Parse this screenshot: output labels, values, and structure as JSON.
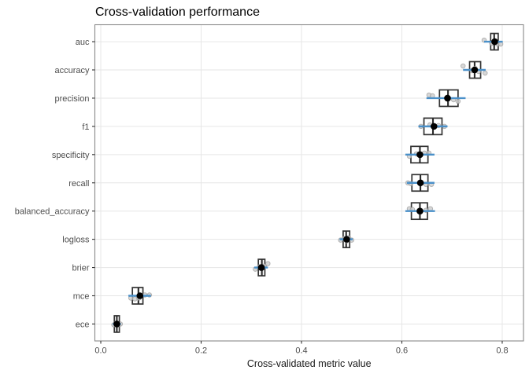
{
  "title": "Cross-validation performance",
  "chart_data": {
    "type": "boxplot",
    "orientation": "horizontal",
    "title": "Cross-validation performance",
    "xlabel": "Cross-validated metric value",
    "ylabel": "",
    "xlim": [
      -0.0118,
      0.8424
    ],
    "x_ticks": [
      0.0,
      0.2,
      0.4,
      0.6,
      0.8
    ],
    "x_tick_labels": [
      "0.0",
      "0.2",
      "0.4",
      "0.6",
      "0.8"
    ],
    "grid": true,
    "legend": "none",
    "categories": [
      "auc",
      "accuracy",
      "precision",
      "f1",
      "specificity",
      "recall",
      "balanced_accuracy",
      "logloss",
      "brier",
      "mce",
      "ece"
    ],
    "metrics": [
      {
        "name": "auc",
        "q1": 0.777,
        "median": 0.784,
        "q3": 0.792,
        "mean": 0.785,
        "range_lo": 0.764,
        "range_hi": 0.801,
        "points": [
          {
            "v": 0.764,
            "dy": -2
          },
          {
            "v": 0.779,
            "dy": 2
          },
          {
            "v": 0.786,
            "dy": -1
          },
          {
            "v": 0.791,
            "dy": 3
          },
          {
            "v": 0.797,
            "dy": 3
          }
        ]
      },
      {
        "name": "accuracy",
        "q1": 0.735,
        "median": 0.745,
        "q3": 0.757,
        "mean": 0.745,
        "range_lo": 0.722,
        "range_hi": 0.767,
        "points": [
          {
            "v": 0.722,
            "dy": -5
          },
          {
            "v": 0.74,
            "dy": 1
          },
          {
            "v": 0.746,
            "dy": -2
          },
          {
            "v": 0.753,
            "dy": 2
          },
          {
            "v": 0.766,
            "dy": 4
          }
        ]
      },
      {
        "name": "precision",
        "q1": 0.675,
        "median": 0.692,
        "q3": 0.712,
        "mean": 0.691,
        "range_lo": 0.649,
        "range_hi": 0.727,
        "points": [
          {
            "v": 0.654,
            "dy": -4
          },
          {
            "v": 0.661,
            "dy": -3
          },
          {
            "v": 0.693,
            "dy": 1
          },
          {
            "v": 0.703,
            "dy": 2
          },
          {
            "v": 0.712,
            "dy": 4
          }
        ]
      },
      {
        "name": "f1",
        "q1": 0.644,
        "median": 0.662,
        "q3": 0.68,
        "mean": 0.664,
        "range_lo": 0.633,
        "range_hi": 0.691,
        "points": [
          {
            "v": 0.638,
            "dy": 0
          },
          {
            "v": 0.656,
            "dy": -2
          },
          {
            "v": 0.664,
            "dy": 1
          },
          {
            "v": 0.673,
            "dy": -1
          },
          {
            "v": 0.685,
            "dy": 0
          }
        ]
      },
      {
        "name": "specificity",
        "q1": 0.618,
        "median": 0.636,
        "q3": 0.652,
        "mean": 0.636,
        "range_lo": 0.607,
        "range_hi": 0.665,
        "points": [
          {
            "v": 0.615,
            "dy": 2
          },
          {
            "v": 0.629,
            "dy": -1
          },
          {
            "v": 0.637,
            "dy": 1
          },
          {
            "v": 0.645,
            "dy": -2
          },
          {
            "v": 0.654,
            "dy": -2
          }
        ]
      },
      {
        "name": "recall",
        "q1": 0.62,
        "median": 0.637,
        "q3": 0.652,
        "mean": 0.637,
        "range_lo": 0.61,
        "range_hi": 0.665,
        "points": [
          {
            "v": 0.612,
            "dy": 0
          },
          {
            "v": 0.618,
            "dy": 1
          },
          {
            "v": 0.638,
            "dy": -1
          },
          {
            "v": 0.648,
            "dy": 2
          },
          {
            "v": 0.659,
            "dy": 2
          }
        ]
      },
      {
        "name": "balanced_accuracy",
        "q1": 0.619,
        "median": 0.636,
        "q3": 0.651,
        "mean": 0.636,
        "range_lo": 0.607,
        "range_hi": 0.666,
        "points": [
          {
            "v": 0.615,
            "dy": -3
          },
          {
            "v": 0.621,
            "dy": -2
          },
          {
            "v": 0.637,
            "dy": 1
          },
          {
            "v": 0.648,
            "dy": -1
          },
          {
            "v": 0.657,
            "dy": -3
          }
        ]
      },
      {
        "name": "logloss",
        "q1": 0.483,
        "median": 0.489,
        "q3": 0.496,
        "mean": 0.49,
        "range_lo": 0.476,
        "range_hi": 0.502,
        "points": [
          {
            "v": 0.478,
            "dy": 1
          },
          {
            "v": 0.485,
            "dy": -1
          },
          {
            "v": 0.49,
            "dy": 2
          },
          {
            "v": 0.494,
            "dy": -2
          },
          {
            "v": 0.5,
            "dy": 1
          }
        ]
      },
      {
        "name": "brier",
        "q1": 0.314,
        "median": 0.321,
        "q3": 0.327,
        "mean": 0.32,
        "range_lo": 0.306,
        "range_hi": 0.333,
        "points": [
          {
            "v": 0.308,
            "dy": 2
          },
          {
            "v": 0.316,
            "dy": -1
          },
          {
            "v": 0.321,
            "dy": 1
          },
          {
            "v": 0.326,
            "dy": -2
          },
          {
            "v": 0.333,
            "dy": -5
          }
        ]
      },
      {
        "name": "mce",
        "q1": 0.063,
        "median": 0.075,
        "q3": 0.084,
        "mean": 0.078,
        "range_lo": 0.055,
        "range_hi": 0.1,
        "points": [
          {
            "v": 0.06,
            "dy": 3
          },
          {
            "v": 0.068,
            "dy": 4
          },
          {
            "v": 0.076,
            "dy": 3
          },
          {
            "v": 0.088,
            "dy": -1
          },
          {
            "v": 0.097,
            "dy": -1
          }
        ]
      },
      {
        "name": "ece",
        "q1": 0.027,
        "median": 0.032,
        "q3": 0.037,
        "mean": 0.032,
        "range_lo": 0.024,
        "range_hi": 0.04,
        "points": [
          {
            "v": 0.026,
            "dy": 1
          },
          {
            "v": 0.03,
            "dy": -1
          },
          {
            "v": 0.033,
            "dy": 1
          },
          {
            "v": 0.035,
            "dy": 1
          },
          {
            "v": 0.039,
            "dy": 0
          }
        ]
      }
    ],
    "colors": {
      "background": "#ffffff",
      "panel_background": "#ffffff",
      "panel_border": "#898989",
      "gridline": "#e6e6e6",
      "box_border": "#333333",
      "box_fill": "#ffffff",
      "median_line": "#2b2b2b",
      "mean_dot": "#000000",
      "interval_line": "#4a90c9",
      "jitter_fill": "#cdcdcd",
      "jitter_stroke": "#8f8f8f",
      "tick_mark": "#333333",
      "tick_label": "#4d4d4d",
      "axis_title": "#1a1a1a",
      "title": "#000000"
    }
  }
}
